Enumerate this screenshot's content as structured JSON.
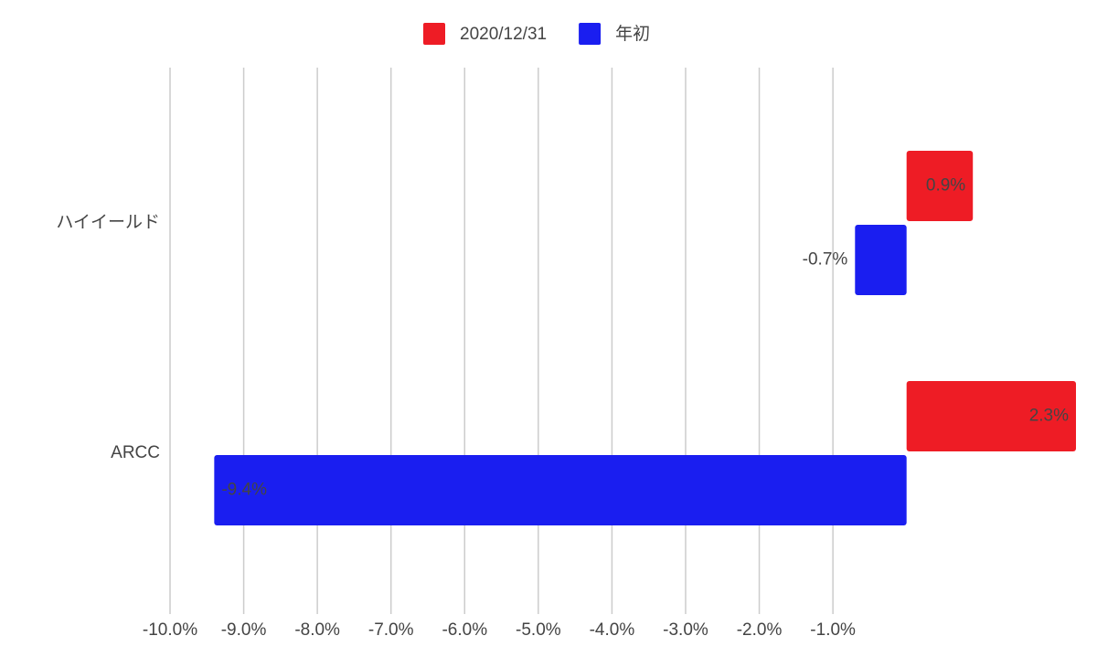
{
  "chart_data": {
    "type": "hbar",
    "categories": [
      "ハイイールド",
      "ARCC"
    ],
    "series": [
      {
        "name": "2020/12/31",
        "color": "#ee1c25",
        "values": [
          0.9,
          2.3
        ],
        "value_labels": [
          "0.9%",
          "2.3%"
        ]
      },
      {
        "name": "年初",
        "color": "#1a1ef0",
        "values": [
          -0.7,
          -9.4
        ],
        "value_labels": [
          "-0.7%",
          "-9.4%"
        ]
      }
    ],
    "xlim": [
      -10,
      2.3
    ],
    "xticks": [
      {
        "value": -10,
        "label": "-10.0%"
      },
      {
        "value": -9,
        "label": "-9.0%"
      },
      {
        "value": -8,
        "label": "-8.0%"
      },
      {
        "value": -7,
        "label": "-7.0%"
      },
      {
        "value": -6,
        "label": "-6.0%"
      },
      {
        "value": -5,
        "label": "-5.0%"
      },
      {
        "value": -4,
        "label": "-4.0%"
      },
      {
        "value": -3,
        "label": "-3.0%"
      },
      {
        "value": -2,
        "label": "-2.0%"
      },
      {
        "value": -1,
        "label": "-1.0%"
      }
    ],
    "grid": true,
    "legend": "top"
  }
}
